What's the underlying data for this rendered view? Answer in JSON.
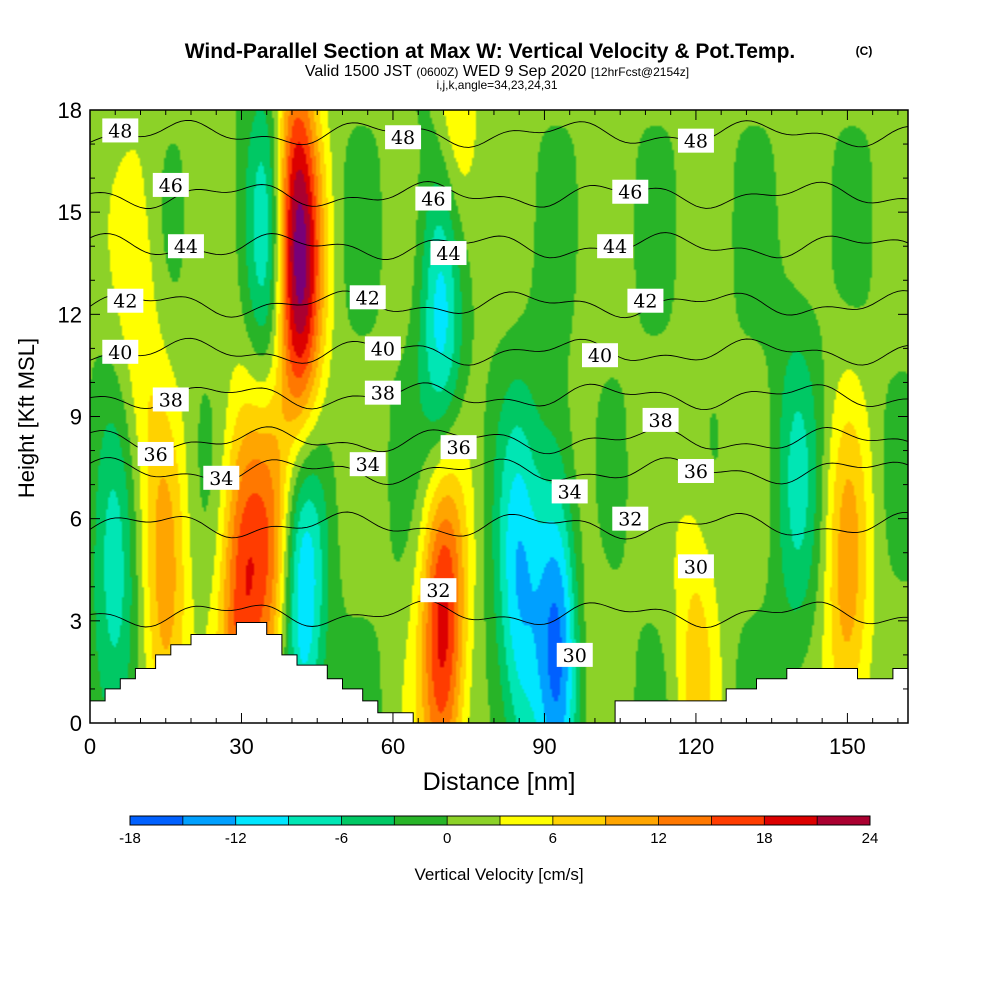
{
  "chart_data": {
    "type": "heatmap",
    "title": "Wind-Parallel Section at Max W: Vertical Velocity & Pot.Temp.",
    "title_mark": "(C)",
    "subtitle": {
      "valid": "Valid 1500 JST",
      "utc": "(0600Z)",
      "date": "WED 9 Sep 2020",
      "fcst": "[12hrFcst@2154z]"
    },
    "subtitle2": "i,j,k,angle=34,23,24,31",
    "xlabel": "Distance [nm]",
    "ylabel": "Height [Kft MSL]",
    "xlim": [
      0,
      162
    ],
    "ylim": [
      0,
      18
    ],
    "x_ticks": [
      "0",
      "30",
      "60",
      "90",
      "120",
      "150"
    ],
    "y_ticks": [
      "0",
      "3",
      "6",
      "9",
      "12",
      "15",
      "18"
    ],
    "colorbar": {
      "label": "Vertical Velocity [cm/s]",
      "ticks": [
        "-18",
        "-12",
        "-6",
        "0",
        "6",
        "12",
        "18",
        "24"
      ],
      "levels": [
        -18,
        -15,
        -12,
        -9,
        -6,
        -3,
        0,
        3,
        6,
        9,
        12,
        15,
        18,
        21,
        24
      ],
      "colors": [
        "#0000ff",
        "#0060ff",
        "#00a0ff",
        "#00e6ff",
        "#00e6b4",
        "#00c864",
        "#28b428",
        "#8cd228",
        "#ffff00",
        "#ffd200",
        "#ffa500",
        "#ff7800",
        "#ff3c00",
        "#dc0000",
        "#aa0030",
        "#780078"
      ]
    },
    "background_level": 0.5,
    "updrafts": [
      {
        "x": 30,
        "y": 3.5,
        "w": 15
      },
      {
        "x": 36,
        "y": 5,
        "w": 12
      },
      {
        "x": 40,
        "y": 15,
        "w": 16
      },
      {
        "x": 42,
        "y": 12,
        "w": 15
      },
      {
        "x": 70,
        "y": 3,
        "w": 20
      },
      {
        "x": 72,
        "y": 16,
        "w": 10
      },
      {
        "x": 150,
        "y": 3.5,
        "w": 10
      },
      {
        "x": 120,
        "y": 2.5,
        "w": 6
      },
      {
        "x": 10,
        "y": 12,
        "w": 5
      },
      {
        "x": 15,
        "y": 3,
        "w": 10
      },
      {
        "x": 96,
        "y": 4.5,
        "w": 6
      }
    ],
    "downdrafts": [
      {
        "x": 36,
        "y": 14,
        "w": -12
      },
      {
        "x": 42,
        "y": 4,
        "w": -15
      },
      {
        "x": 70,
        "y": 12,
        "w": -16
      },
      {
        "x": 93,
        "y": 3,
        "w": -18
      },
      {
        "x": 85,
        "y": 3.5,
        "w": -12
      },
      {
        "x": 5,
        "y": 3,
        "w": -8
      },
      {
        "x": 140,
        "y": 7,
        "w": -6
      }
    ],
    "theta_contours": [
      {
        "label": "30",
        "base": 3.2
      },
      {
        "label": "32",
        "base": 5.8
      },
      {
        "label": "34",
        "base": 7.4
      },
      {
        "label": "36",
        "base": 8.3
      },
      {
        "label": "38",
        "base": 9.6
      },
      {
        "label": "40",
        "base": 10.9
      },
      {
        "label": "42",
        "base": 12.3
      },
      {
        "label": "44",
        "base": 14
      },
      {
        "label": "46",
        "base": 15.5
      },
      {
        "label": "48",
        "base": 17.3
      }
    ],
    "contour_labels": [
      {
        "text": "48",
        "x": 6,
        "y": 17.4
      },
      {
        "text": "48",
        "x": 62,
        "y": 17.2
      },
      {
        "text": "48",
        "x": 120,
        "y": 17.1
      },
      {
        "text": "46",
        "x": 16,
        "y": 15.8
      },
      {
        "text": "46",
        "x": 68,
        "y": 15.4
      },
      {
        "text": "46",
        "x": 107,
        "y": 15.6
      },
      {
        "text": "44",
        "x": 19,
        "y": 14.0
      },
      {
        "text": "44",
        "x": 71,
        "y": 13.8
      },
      {
        "text": "44",
        "x": 104,
        "y": 14.0
      },
      {
        "text": "42",
        "x": 7,
        "y": 12.4
      },
      {
        "text": "42",
        "x": 55,
        "y": 12.5
      },
      {
        "text": "42",
        "x": 110,
        "y": 12.4
      },
      {
        "text": "40",
        "x": 6,
        "y": 10.9
      },
      {
        "text": "40",
        "x": 58,
        "y": 11.0
      },
      {
        "text": "40",
        "x": 101,
        "y": 10.8
      },
      {
        "text": "38",
        "x": 16,
        "y": 9.5
      },
      {
        "text": "38",
        "x": 58,
        "y": 9.7
      },
      {
        "text": "38",
        "x": 113,
        "y": 8.9
      },
      {
        "text": "36",
        "x": 13,
        "y": 7.9
      },
      {
        "text": "36",
        "x": 73,
        "y": 8.1
      },
      {
        "text": "36",
        "x": 120,
        "y": 7.4
      },
      {
        "text": "34",
        "x": 26,
        "y": 7.2
      },
      {
        "text": "34",
        "x": 55,
        "y": 7.6
      },
      {
        "text": "34",
        "x": 95,
        "y": 6.8
      },
      {
        "text": "32",
        "x": 69,
        "y": 3.9
      },
      {
        "text": "32",
        "x": 107,
        "y": 6.0
      },
      {
        "text": "30",
        "x": 96,
        "y": 2.0
      },
      {
        "text": "30",
        "x": 120,
        "y": 4.6
      }
    ],
    "terrain": [
      [
        0,
        0.65
      ],
      [
        3,
        0.65
      ],
      [
        3,
        1.0
      ],
      [
        6,
        1.0
      ],
      [
        6,
        1.3
      ],
      [
        9,
        1.3
      ],
      [
        9,
        1.6
      ],
      [
        13,
        1.6
      ],
      [
        13,
        2.0
      ],
      [
        16,
        2.0
      ],
      [
        16,
        2.3
      ],
      [
        20,
        2.3
      ],
      [
        20,
        2.6
      ],
      [
        29,
        2.6
      ],
      [
        29,
        2.95
      ],
      [
        35,
        2.95
      ],
      [
        35,
        2.6
      ],
      [
        38,
        2.6
      ],
      [
        38,
        2.0
      ],
      [
        41,
        2.0
      ],
      [
        41,
        1.7
      ],
      [
        47,
        1.7
      ],
      [
        47,
        1.3
      ],
      [
        50,
        1.3
      ],
      [
        50,
        1.0
      ],
      [
        54,
        1.0
      ],
      [
        54,
        0.65
      ],
      [
        57,
        0.65
      ],
      [
        57,
        0.3
      ],
      [
        64,
        0.3
      ],
      [
        64,
        0.0
      ],
      [
        104,
        0.0
      ],
      [
        104,
        0.65
      ],
      [
        126,
        0.65
      ],
      [
        126,
        1.0
      ],
      [
        132,
        1.0
      ],
      [
        132,
        1.3
      ],
      [
        138,
        1.3
      ],
      [
        138,
        1.6
      ],
      [
        152,
        1.6
      ],
      [
        152,
        1.3
      ],
      [
        159,
        1.3
      ],
      [
        159,
        1.6
      ],
      [
        162,
        1.6
      ],
      [
        162,
        0
      ]
    ]
  }
}
